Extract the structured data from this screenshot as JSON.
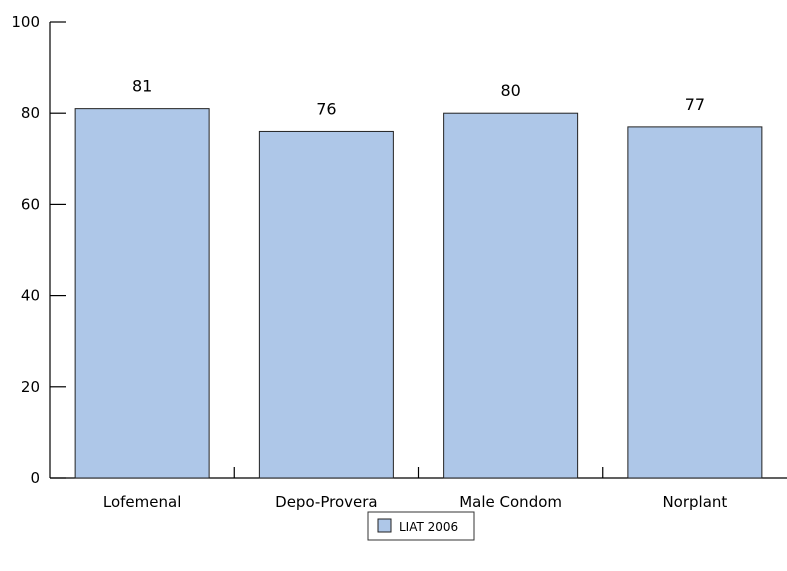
{
  "chart_data": {
    "type": "bar",
    "categories": [
      "Lofemenal",
      "Depo-Provera",
      "Male Condom",
      "Norplant"
    ],
    "series": [
      {
        "name": "LIAT 2006",
        "values": [
          81,
          76,
          80,
          77
        ]
      }
    ],
    "data_labels": [
      "81",
      "76",
      "80",
      "77"
    ],
    "yticks": [
      "0",
      "20",
      "40",
      "60",
      "80",
      "100"
    ],
    "ylim": [
      0,
      100
    ],
    "title": "",
    "xlabel": "",
    "ylabel": "",
    "grid": false,
    "legend_position": "bottom-center",
    "colors": {
      "bar_fill": "#aec7e8",
      "bar_stroke": "#222222",
      "axis": "#000000"
    }
  }
}
